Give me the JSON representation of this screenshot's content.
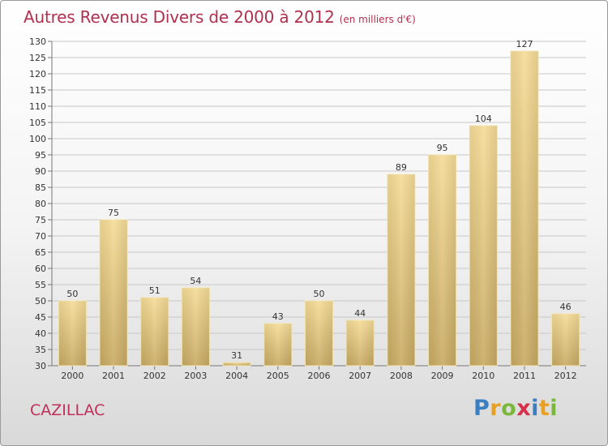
{
  "title": "Autres Revenus Divers de 2000 à 2012",
  "title_unit": "(en milliers d'€)",
  "place": "CAZILLAC",
  "logo": {
    "letters": [
      "P",
      "r",
      "o",
      "x",
      "i",
      "t",
      "i"
    ],
    "colors": [
      "#3a7fc4",
      "#e8a022",
      "#7ab83c",
      "#d6304a",
      "#3a7fc4",
      "#e8a022",
      "#7ab83c"
    ]
  },
  "chart_data": {
    "type": "bar",
    "categories": [
      "2000",
      "2001",
      "2002",
      "2003",
      "2004",
      "2005",
      "2006",
      "2007",
      "2008",
      "2009",
      "2010",
      "2011",
      "2012"
    ],
    "values": [
      50,
      75,
      51,
      54,
      31,
      43,
      50,
      44,
      89,
      95,
      104,
      127,
      46
    ],
    "ylim": [
      30,
      130
    ],
    "yticks": [
      30,
      35,
      40,
      45,
      50,
      55,
      60,
      65,
      70,
      75,
      80,
      85,
      90,
      95,
      100,
      105,
      110,
      115,
      120,
      125,
      130
    ],
    "grid": true,
    "bar_color": "#e8cf8c"
  }
}
